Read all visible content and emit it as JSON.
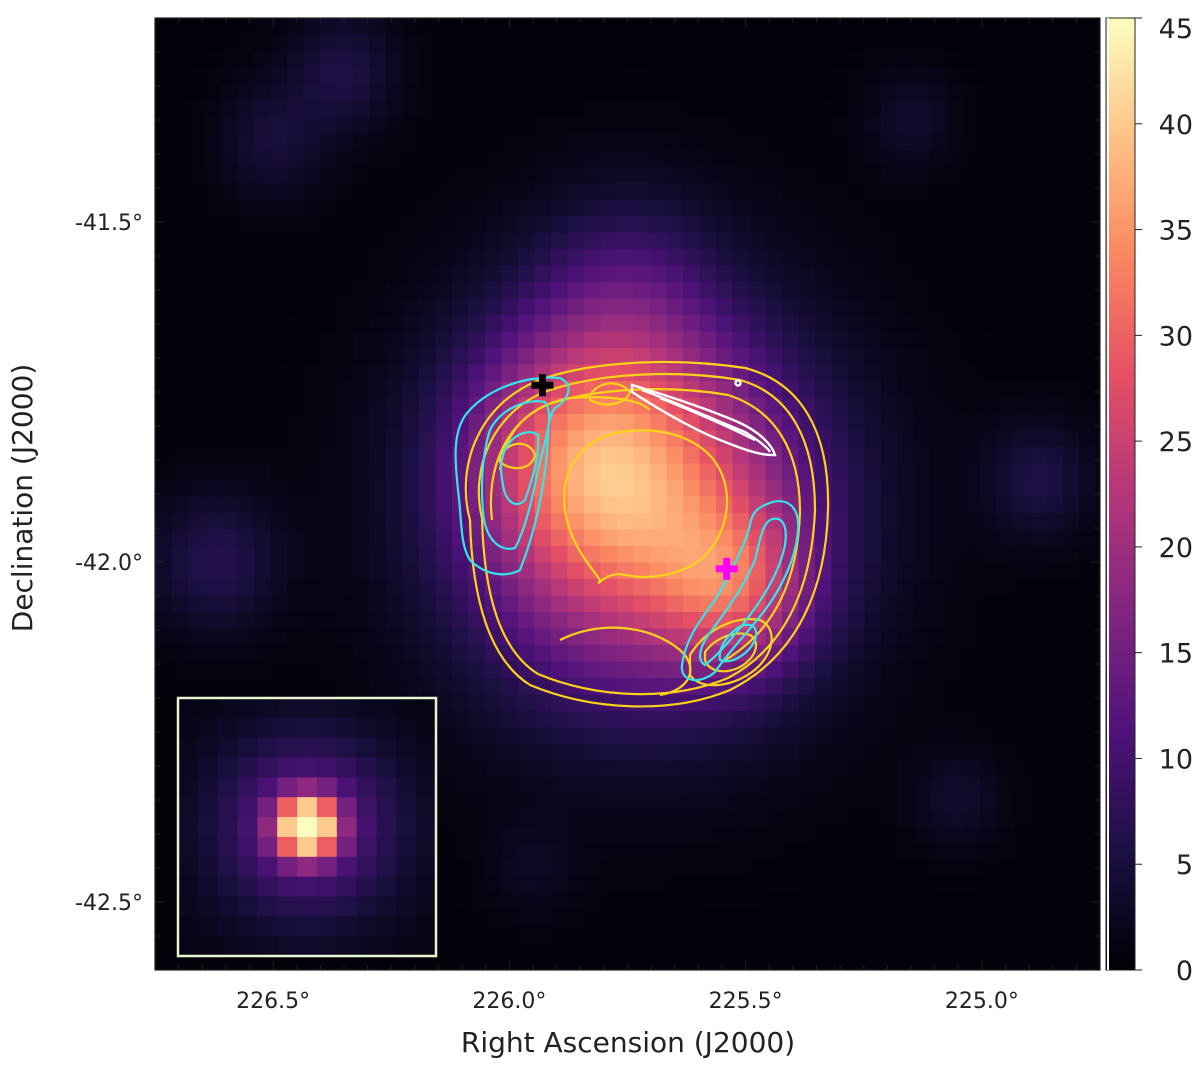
{
  "chart_data": {
    "type": "heatmap",
    "title": "",
    "xlabel": "Right Ascension (J2000)",
    "ylabel": "Declination (J2000)",
    "colormap": "magma",
    "xlim": [
      226.75,
      224.75
    ],
    "ylim": [
      -42.6,
      -41.2
    ],
    "x_ticks": [
      226.5,
      226.0,
      225.5,
      225.0
    ],
    "x_tick_labels": [
      "226.5°",
      "226.0°",
      "225.5°",
      "225.0°"
    ],
    "y_ticks": [
      -41.5,
      -42.0,
      -42.5
    ],
    "y_tick_labels": [
      "-41.5°",
      "-42.0°",
      "-42.5°"
    ],
    "colorbar": {
      "range": [
        0,
        45
      ],
      "ticks": [
        0,
        5,
        10,
        15,
        20,
        25,
        30,
        35,
        40,
        45
      ],
      "tick_labels": [
        "0",
        "5",
        "10",
        "15",
        "20",
        "25",
        "30",
        "35",
        "40",
        "45"
      ]
    },
    "emission_sources": [
      {
        "ra": 225.72,
        "dec": -41.92,
        "sigma_deg": 0.18,
        "amp": 32
      },
      {
        "ra": 225.86,
        "dec": -41.82,
        "sigma_deg": 0.12,
        "amp": 12
      },
      {
        "ra": 225.52,
        "dec": -42.04,
        "sigma_deg": 0.08,
        "amp": 14
      },
      {
        "ra": 225.75,
        "dec": -41.6,
        "sigma_deg": 0.1,
        "amp": 6
      },
      {
        "ra": 226.35,
        "dec": -41.28,
        "sigma_deg": 0.06,
        "amp": 5
      },
      {
        "ra": 226.5,
        "dec": -41.38,
        "sigma_deg": 0.06,
        "amp": 4
      },
      {
        "ra": 225.15,
        "dec": -41.35,
        "sigma_deg": 0.05,
        "amp": 3
      },
      {
        "ra": 224.88,
        "dec": -41.88,
        "sigma_deg": 0.06,
        "amp": 5
      },
      {
        "ra": 226.62,
        "dec": -42.0,
        "sigma_deg": 0.07,
        "amp": 6
      },
      {
        "ra": 225.05,
        "dec": -42.35,
        "sigma_deg": 0.05,
        "amp": 3
      },
      {
        "ra": 225.95,
        "dec": -42.45,
        "sigma_deg": 0.05,
        "amp": 2
      }
    ],
    "markers": [
      {
        "name": "black-cross",
        "ra": 225.93,
        "dec": -41.74,
        "color": "#000000"
      },
      {
        "name": "magenta-cross",
        "ra": 225.54,
        "dec": -42.01,
        "color": "#ff00ff"
      }
    ],
    "contours": {
      "yellow_color": "#ffd21a",
      "cyan_color": "#33e6ee",
      "white_color": "#ffffff"
    },
    "inset": {
      "description": "point spread function",
      "border_color": "#e8f5d0"
    }
  }
}
